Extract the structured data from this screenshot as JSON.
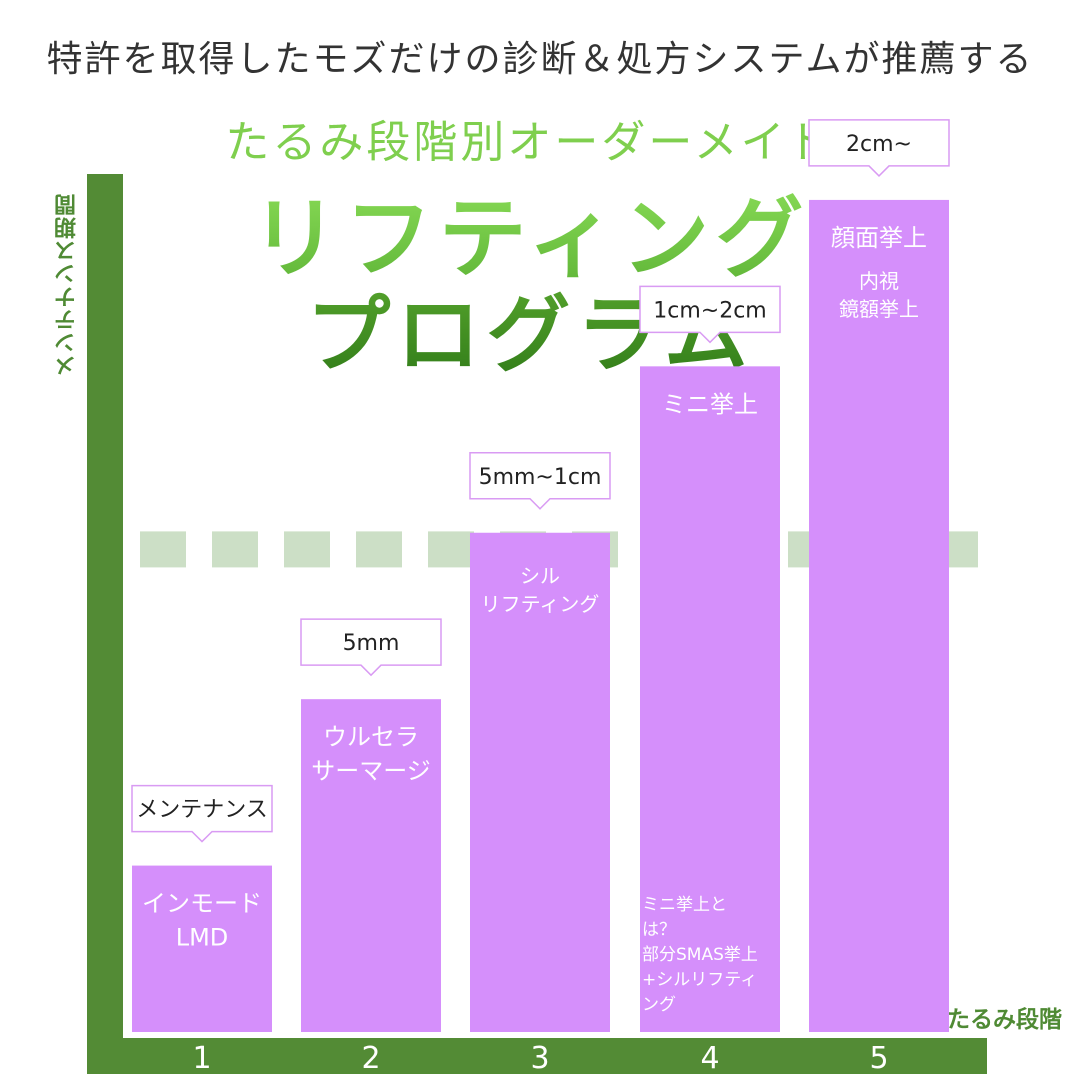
{
  "header": {
    "headline": "特許を取得したモズだけの診断＆処方システムが推薦する",
    "subtitle": "たるみ段階別オーダーメイド",
    "title_line1": "リフティング",
    "title_line2": "プログラム"
  },
  "colors": {
    "axis": "#538b35",
    "bar": "#d58ffb",
    "bar_border": "#c57aea",
    "dashed_line": "#ccdfc6",
    "callout_border": "#d99bf3",
    "title_green_light": "#7fcf4e",
    "title_green_dark": "#2f7a18"
  },
  "chart_data": {
    "type": "bar",
    "ylabel": "メンテナンス期間",
    "xlabel": "皮膚のたるみ段階",
    "categories": [
      "1",
      "2",
      "3",
      "4",
      "5"
    ],
    "values": [
      1,
      2,
      3,
      4,
      5
    ],
    "ylim": [
      0,
      5.3
    ],
    "grid": false,
    "threshold_line": {
      "style": "dashed",
      "value": 2.9
    },
    "bars": [
      {
        "stage": "1",
        "callout": "メンテナンス",
        "name": [
          "インモード",
          "LMD"
        ],
        "sub": [],
        "note": []
      },
      {
        "stage": "2",
        "callout": "5mm",
        "name": [
          "ウルセラ",
          "サーマージ"
        ],
        "sub": [],
        "note": []
      },
      {
        "stage": "3",
        "callout": "5mm~1cm",
        "name": [],
        "sub": [
          "シル",
          "リフティング"
        ],
        "note": []
      },
      {
        "stage": "4",
        "callout": "1cm~2cm",
        "name": [
          "ミニ挙上"
        ],
        "sub": [],
        "note": [
          "ミニ挙上と",
          "は？",
          "部分SMAS挙上",
          "+シルリフティ",
          "ング"
        ]
      },
      {
        "stage": "5",
        "callout": "2cm~",
        "name": [
          "顔面挙上"
        ],
        "sub": [
          "内視",
          "鏡額挙上"
        ],
        "note": []
      }
    ]
  }
}
